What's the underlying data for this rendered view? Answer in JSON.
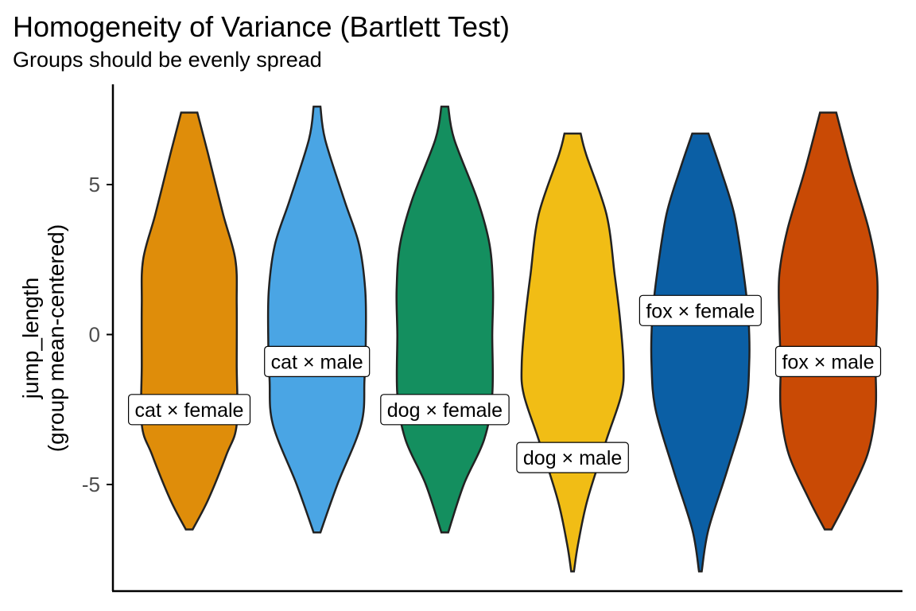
{
  "chart_data": {
    "type": "violin",
    "title": "Homogeneity of Variance (Bartlett Test)",
    "subtitle": "Groups should be evenly spread",
    "ylabel": [
      "jump_length",
      "(group mean-centered)"
    ],
    "xlabel": "",
    "ylim": [
      -8.5,
      8.2
    ],
    "yticks": [
      -5,
      0,
      5
    ],
    "grid": false,
    "legend": "none",
    "series": [
      {
        "name": "cat × female",
        "color": "#DF8D0A",
        "label_y": -2.5,
        "profile": [
          [
            -6.5,
            0.05
          ],
          [
            -5.5,
            0.28
          ],
          [
            -4.0,
            0.55
          ],
          [
            -3.0,
            0.7
          ],
          [
            -1.0,
            0.7
          ],
          [
            1.0,
            0.7
          ],
          [
            2.5,
            0.68
          ],
          [
            4.0,
            0.5
          ],
          [
            6.0,
            0.28
          ],
          [
            7.4,
            0.12
          ]
        ]
      },
      {
        "name": "cat × male",
        "color": "#4AA5E4",
        "label_y": -0.9,
        "profile": [
          [
            -6.6,
            0.05
          ],
          [
            -5.0,
            0.3
          ],
          [
            -3.0,
            0.65
          ],
          [
            -1.5,
            0.7
          ],
          [
            0.0,
            0.72
          ],
          [
            1.5,
            0.71
          ],
          [
            3.0,
            0.62
          ],
          [
            4.5,
            0.4
          ],
          [
            6.5,
            0.12
          ],
          [
            7.6,
            0.05
          ]
        ]
      },
      {
        "name": "dog × female",
        "color": "#148F5F",
        "label_y": -2.5,
        "profile": [
          [
            -6.6,
            0.05
          ],
          [
            -5.0,
            0.28
          ],
          [
            -3.5,
            0.58
          ],
          [
            -2.0,
            0.7
          ],
          [
            0.0,
            0.7
          ],
          [
            1.5,
            0.71
          ],
          [
            3.0,
            0.66
          ],
          [
            4.5,
            0.48
          ],
          [
            6.5,
            0.14
          ],
          [
            7.6,
            0.05
          ]
        ]
      },
      {
        "name": "dog × male",
        "color": "#F1BD15",
        "label_y": -4.1,
        "profile": [
          [
            -7.9,
            0.02
          ],
          [
            -7.0,
            0.08
          ],
          [
            -5.5,
            0.22
          ],
          [
            -3.5,
            0.5
          ],
          [
            -2.0,
            0.72
          ],
          [
            -1.0,
            0.75
          ],
          [
            0.5,
            0.7
          ],
          [
            2.0,
            0.62
          ],
          [
            4.0,
            0.5
          ],
          [
            6.0,
            0.2
          ],
          [
            6.7,
            0.12
          ]
        ]
      },
      {
        "name": "fox × female",
        "color": "#0B5FA5",
        "label_y": 0.8,
        "profile": [
          [
            -7.9,
            0.02
          ],
          [
            -6.5,
            0.12
          ],
          [
            -4.5,
            0.4
          ],
          [
            -2.5,
            0.66
          ],
          [
            -1.0,
            0.72
          ],
          [
            0.5,
            0.71
          ],
          [
            2.0,
            0.64
          ],
          [
            4.0,
            0.5
          ],
          [
            5.5,
            0.3
          ],
          [
            6.7,
            0.12
          ]
        ]
      },
      {
        "name": "fox × male",
        "color": "#C94A05",
        "label_y": -0.9,
        "profile": [
          [
            -6.5,
            0.05
          ],
          [
            -5.5,
            0.28
          ],
          [
            -4.0,
            0.58
          ],
          [
            -2.5,
            0.7
          ],
          [
            -1.0,
            0.7
          ],
          [
            0.5,
            0.72
          ],
          [
            2.0,
            0.72
          ],
          [
            3.5,
            0.6
          ],
          [
            5.5,
            0.34
          ],
          [
            7.4,
            0.12
          ]
        ]
      }
    ]
  }
}
